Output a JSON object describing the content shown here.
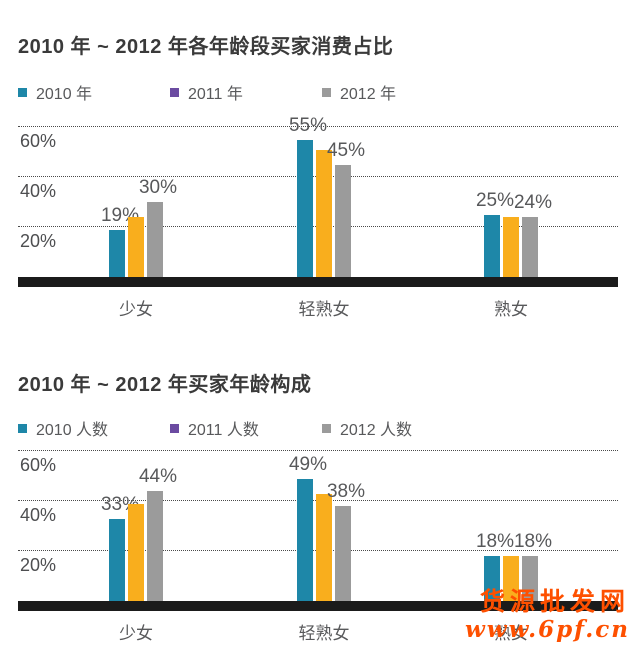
{
  "colors": {
    "teal": "#1e87a8",
    "purple": "#6b4ba1",
    "orange": "#f9ae1d",
    "gray": "#9b9b9b",
    "axis": "#1b1b1b",
    "title_text": "#3a3a3a",
    "label_text": "#58595b",
    "watermark": "#fe5000"
  },
  "chart_data": [
    {
      "type": "bar",
      "title": "2010 年 ~ 2012 年各年龄段买家消费占比",
      "categories": [
        "少女",
        "轻熟女",
        "熟女"
      ],
      "series": [
        {
          "name": "2010 年",
          "legend_color": "#1e87a8",
          "bar_color": "#1e87a8",
          "values": [
            19,
            55,
            25
          ],
          "value_labels": [
            "19%",
            "55%",
            "25%"
          ]
        },
        {
          "name": "2011 年",
          "legend_color": "#6b4ba1",
          "bar_color": "#f9ae1d",
          "values": [
            24,
            51,
            24
          ],
          "value_labels": [
            null,
            null,
            null
          ]
        },
        {
          "name": "2012 年",
          "legend_color": "#9b9b9b",
          "bar_color": "#9b9b9b",
          "values": [
            30,
            45,
            24
          ],
          "value_labels": [
            "30%",
            "45%",
            "24%"
          ]
        }
      ],
      "xlabel": "",
      "ylabel": "",
      "yticks": [
        20,
        40,
        60
      ],
      "ytick_labels": [
        "20%",
        "40%",
        "60%"
      ],
      "ylim": [
        0,
        66
      ],
      "grid": "horizontal-dotted",
      "legend_position": "top"
    },
    {
      "type": "bar",
      "title": "2010 年 ~ 2012 年买家年龄构成",
      "categories": [
        "少女",
        "轻熟女",
        "熟女"
      ],
      "series": [
        {
          "name": "2010 人数",
          "legend_color": "#1e87a8",
          "bar_color": "#1e87a8",
          "values": [
            33,
            49,
            18
          ],
          "value_labels": [
            "33%",
            "49%",
            "18%"
          ]
        },
        {
          "name": "2011 人数",
          "legend_color": "#6b4ba1",
          "bar_color": "#f9ae1d",
          "values": [
            39,
            43,
            18
          ],
          "value_labels": [
            null,
            null,
            null
          ]
        },
        {
          "name": "2012 人数",
          "legend_color": "#9b9b9b",
          "bar_color": "#9b9b9b",
          "values": [
            44,
            38,
            18
          ],
          "value_labels": [
            "44%",
            "38%",
            "18%"
          ]
        }
      ],
      "xlabel": "",
      "ylabel": "",
      "yticks": [
        20,
        40,
        60
      ],
      "ytick_labels": [
        "20%",
        "40%",
        "60%"
      ],
      "ylim": [
        0,
        66
      ],
      "grid": "horizontal-dotted",
      "legend_position": "top"
    }
  ],
  "watermark": {
    "line1": "货源批发网",
    "line2": "www.6pf.cn",
    "color": "#fe5000"
  }
}
